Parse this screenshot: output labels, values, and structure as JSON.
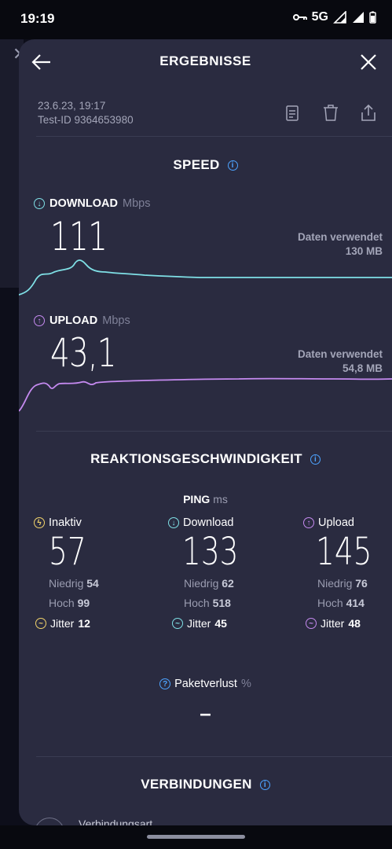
{
  "status": {
    "time": "19:19",
    "network": "5G"
  },
  "header": {
    "title": "ERGEBNISSE"
  },
  "meta": {
    "date": "23.6.23, 19:17",
    "test_id": "Test-ID 9364653980"
  },
  "speed": {
    "title": "SPEED",
    "download": {
      "label": "DOWNLOAD",
      "unit": "Mbps",
      "value": "111",
      "used_label": "Daten verwendet",
      "used_value": "130 MB"
    },
    "upload": {
      "label": "UPLOAD",
      "unit": "Mbps",
      "value": "43,1",
      "used_label": "Daten verwendet",
      "used_value": "54,8 MB"
    }
  },
  "reaction": {
    "title": "REAKTIONSGESCHWINDIGKEIT",
    "ping_label": "PING",
    "ping_unit": "ms",
    "columns": [
      {
        "label": "Inaktiv",
        "value": "57",
        "low_label": "Niedrig",
        "low": "54",
        "high_label": "Hoch",
        "high": "99",
        "jitter_label": "Jitter",
        "jitter": "12",
        "color": "#f2d46b"
      },
      {
        "label": "Download",
        "value": "133",
        "low_label": "Niedrig",
        "low": "62",
        "high_label": "Hoch",
        "high": "518",
        "jitter_label": "Jitter",
        "jitter": "45",
        "color": "#7fe0e6"
      },
      {
        "label": "Upload",
        "value": "145",
        "low_label": "Niedrig",
        "low": "76",
        "high_label": "Hoch",
        "high": "414",
        "jitter_label": "Jitter",
        "jitter": "48",
        "color": "#c58af0"
      }
    ],
    "packet_loss_label": "Paketverlust",
    "packet_loss_unit": "%",
    "packet_loss_value": "–"
  },
  "connections": {
    "title": "VERBINDUNGEN",
    "first_item": "Verbindungsart"
  },
  "colors": {
    "download": "#7fe0e6",
    "upload": "#c58af0",
    "info": "#4da3ff",
    "sheet": "#2a2b40"
  }
}
